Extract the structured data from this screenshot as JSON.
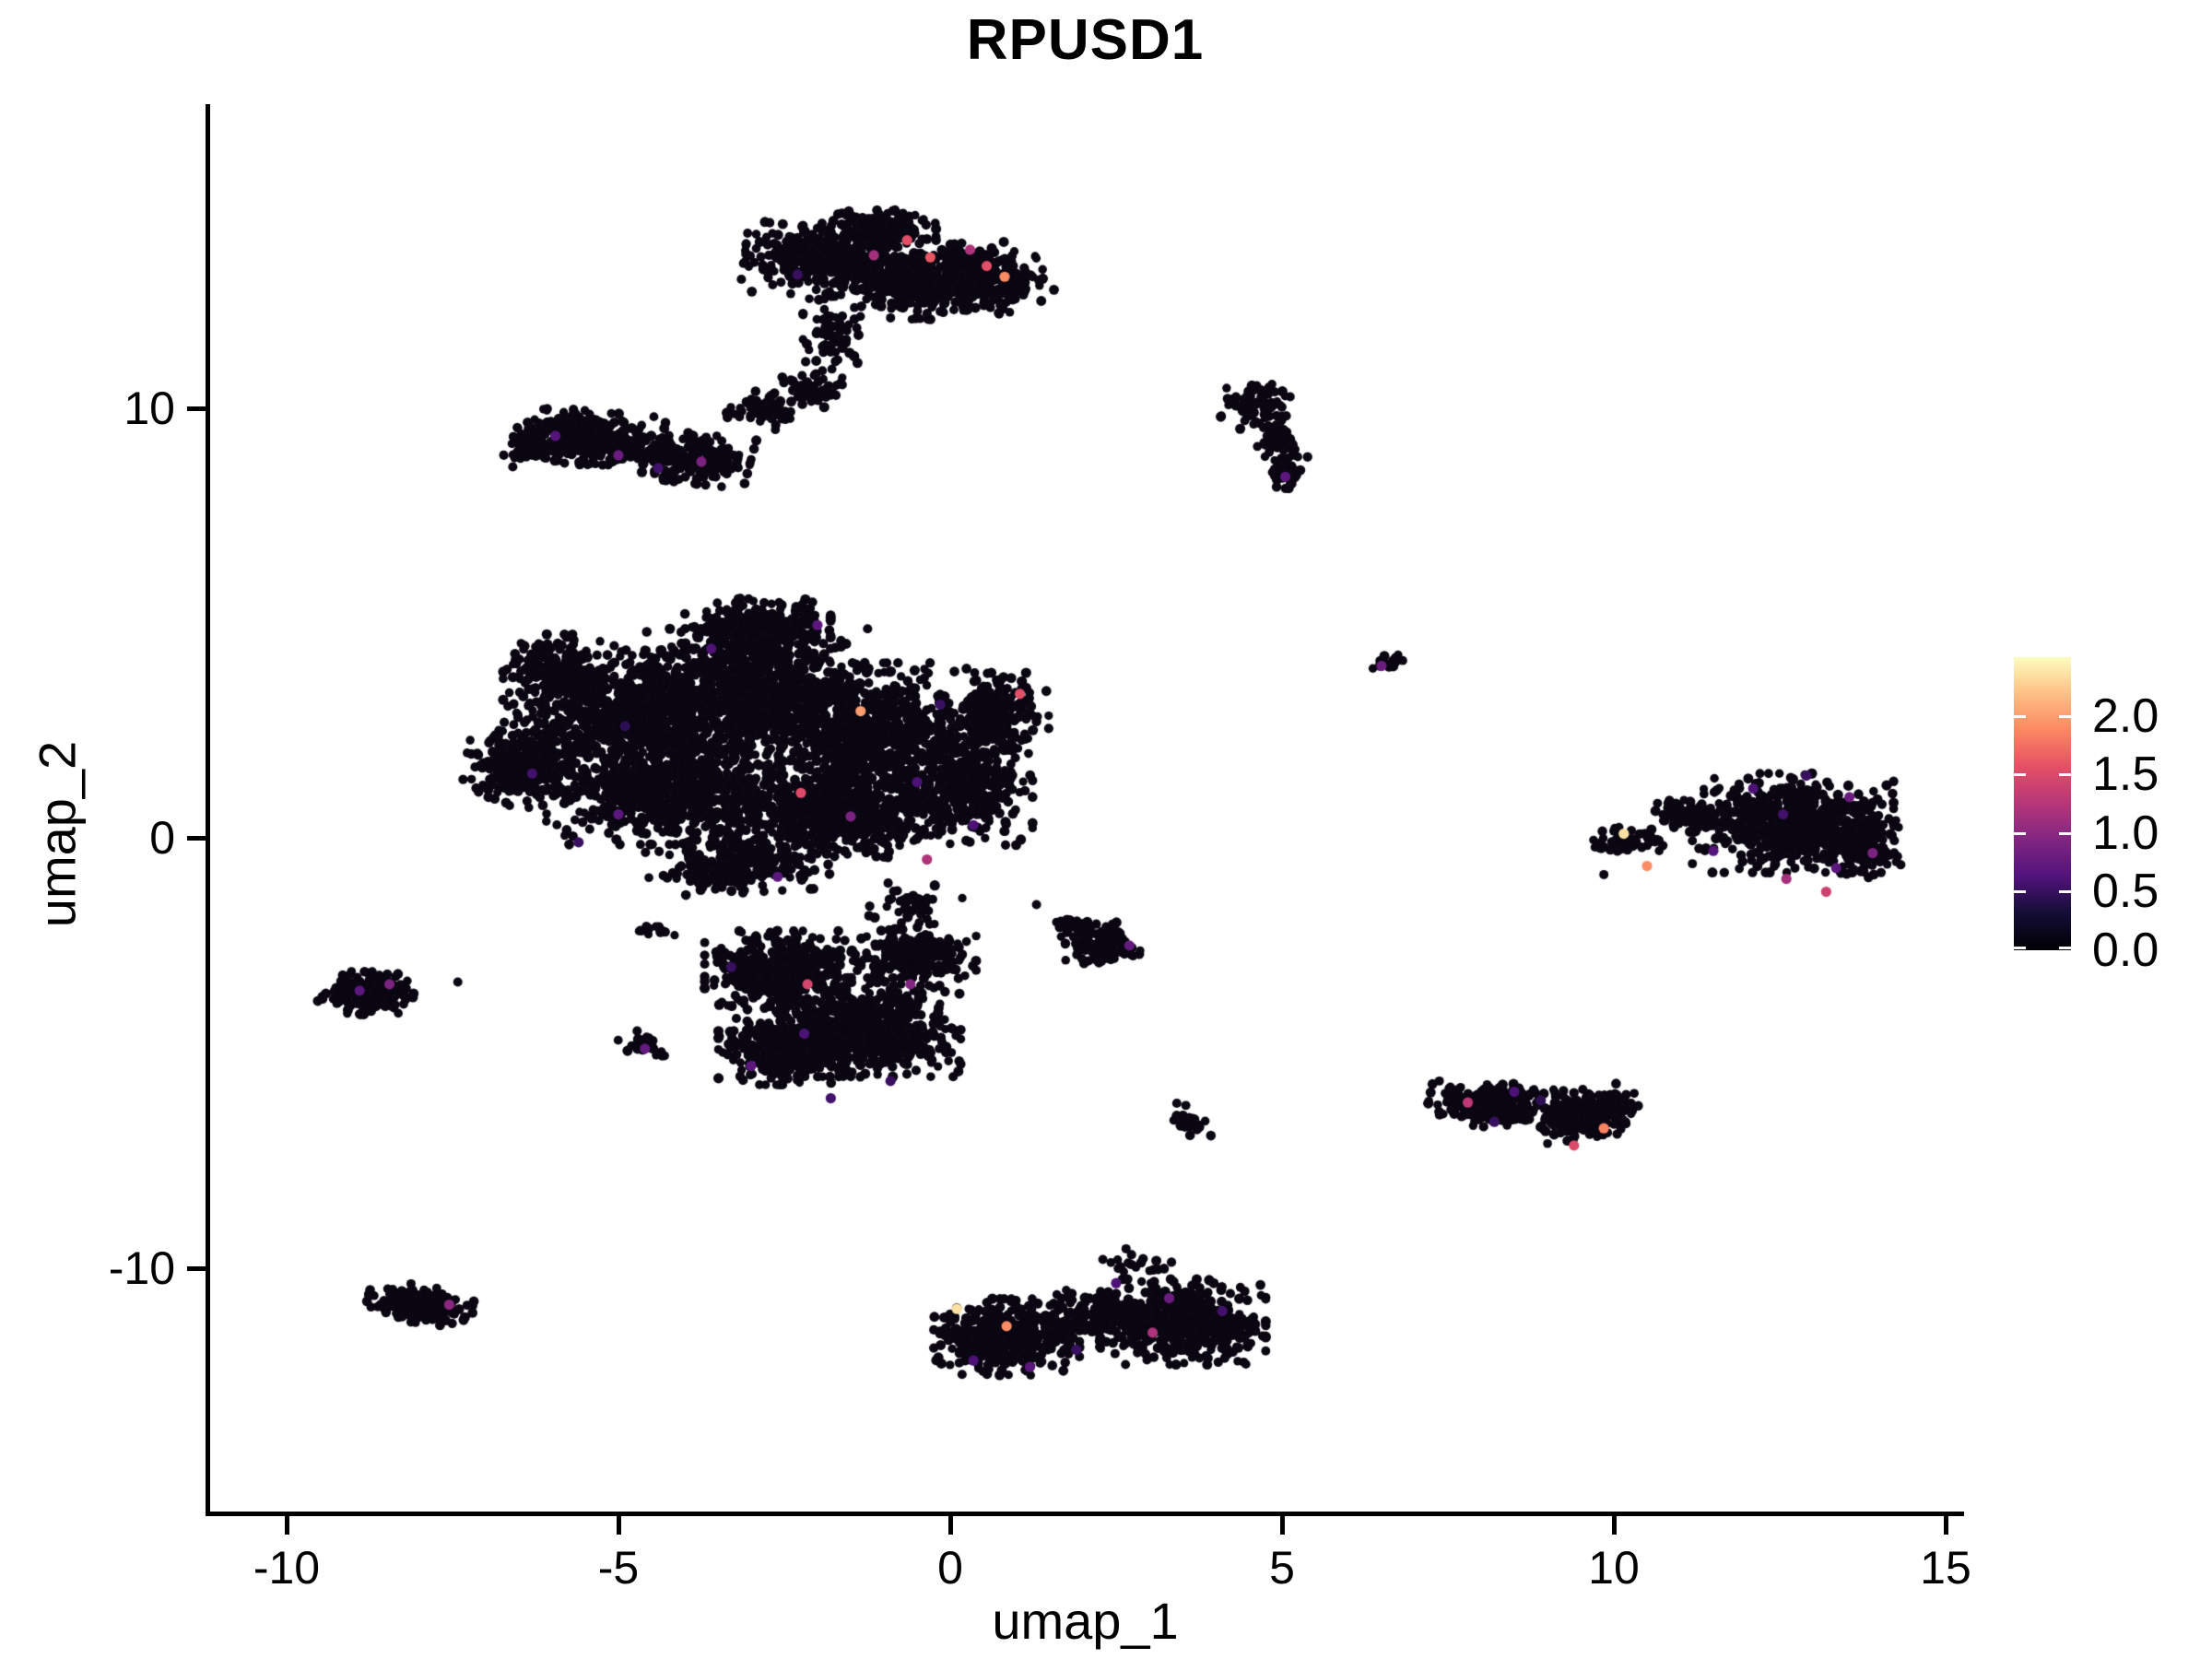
{
  "title": "RPUSD1",
  "chart_data": {
    "type": "scatter",
    "title": "RPUSD1",
    "xlabel": "umap_1",
    "ylabel": "umap_2",
    "background": "#FFFFFF",
    "grid": false,
    "xlim": [
      -11.18,
      15.25
    ],
    "ylim": [
      -15.66,
      17.02
    ],
    "x_ticks": [
      -10,
      -5,
      0,
      5,
      10,
      15
    ],
    "x_tick_labels": [
      "-10",
      "-5",
      "0",
      "5",
      "10",
      "15"
    ],
    "y_ticks": [
      -10,
      0,
      10
    ],
    "y_tick_labels": [
      "-10",
      "0",
      "10"
    ],
    "point_color_zero": "#0A0612",
    "point_radius_px": 5,
    "legend": {
      "position": "right",
      "colormap": "magma",
      "max": 2.5,
      "ticks": [
        2.0,
        1.5,
        1.0,
        0.5,
        0.0
      ],
      "tick_labels": [
        "2.0",
        "1.5",
        "1.0",
        "0.5",
        "0.0"
      ],
      "stops": [
        [
          0.0,
          "#000004"
        ],
        [
          0.13,
          "#140E36"
        ],
        [
          0.25,
          "#51127C"
        ],
        [
          0.38,
          "#822681"
        ],
        [
          0.5,
          "#B63679"
        ],
        [
          0.63,
          "#E65164"
        ],
        [
          0.75,
          "#FB8861"
        ],
        [
          0.88,
          "#FEC287"
        ],
        [
          1.0,
          "#FCFDBF"
        ]
      ]
    },
    "clusters": [
      {
        "name": "top-a",
        "cx": -1.9,
        "cy": 13.45,
        "rx": 1.15,
        "ry": 0.8,
        "rot": -5,
        "n": 480
      },
      {
        "name": "top-b",
        "cx": -0.45,
        "cy": 13.0,
        "rx": 0.95,
        "ry": 0.9,
        "rot": 0,
        "n": 380
      },
      {
        "name": "top-c",
        "cx": 0.6,
        "cy": 12.95,
        "rx": 0.8,
        "ry": 0.75,
        "rot": 20,
        "n": 260
      },
      {
        "name": "top-d",
        "cx": -1.05,
        "cy": 14.2,
        "rx": 0.8,
        "ry": 0.45,
        "rot": 0,
        "n": 160
      },
      {
        "name": "top-tail-a",
        "cx": -1.8,
        "cy": 11.7,
        "rx": 0.4,
        "ry": 0.8,
        "rot": 0,
        "n": 70
      },
      {
        "name": "top-tail-b",
        "cx": -2.15,
        "cy": 10.5,
        "rx": 0.5,
        "ry": 0.55,
        "rot": 0,
        "n": 55
      },
      {
        "name": "top-tail-c",
        "cx": -2.8,
        "cy": 9.95,
        "rx": 0.55,
        "ry": 0.4,
        "rot": -20,
        "n": 55
      },
      {
        "name": "nw-a",
        "cx": -5.45,
        "cy": 9.3,
        "rx": 1.05,
        "ry": 0.6,
        "rot": -8,
        "n": 300
      },
      {
        "name": "nw-b",
        "cx": -4.0,
        "cy": 8.85,
        "rx": 0.95,
        "ry": 0.55,
        "rot": -10,
        "n": 240
      },
      {
        "name": "nw-c",
        "cx": -6.3,
        "cy": 9.1,
        "rx": 0.5,
        "ry": 0.45,
        "rot": 0,
        "n": 90
      },
      {
        "name": "comma-a",
        "cx": 4.6,
        "cy": 10.05,
        "rx": 0.5,
        "ry": 0.55,
        "rot": 0,
        "n": 70
      },
      {
        "name": "comma-b",
        "cx": 4.95,
        "cy": 9.25,
        "rx": 0.33,
        "ry": 0.6,
        "rot": 12,
        "n": 65
      },
      {
        "name": "comma-c",
        "cx": 5.05,
        "cy": 8.55,
        "rx": 0.28,
        "ry": 0.4,
        "rot": 0,
        "n": 35
      },
      {
        "name": "cen-a",
        "cx": -4.8,
        "cy": 2.8,
        "rx": 1.7,
        "ry": 1.5,
        "rot": 0,
        "n": 850
      },
      {
        "name": "cen-b",
        "cx": -2.9,
        "cy": 3.4,
        "rx": 1.6,
        "ry": 1.4,
        "rot": 0,
        "n": 850
      },
      {
        "name": "cen-c",
        "cx": -1.2,
        "cy": 2.4,
        "rx": 1.5,
        "ry": 1.6,
        "rot": 0,
        "n": 750
      },
      {
        "name": "cen-d",
        "cx": -4.1,
        "cy": 1.0,
        "rx": 1.9,
        "ry": 1.1,
        "rot": 0,
        "n": 750
      },
      {
        "name": "cen-e",
        "cx": -1.7,
        "cy": 0.6,
        "rx": 1.8,
        "ry": 1.0,
        "rot": 0,
        "n": 650
      },
      {
        "name": "cen-f",
        "cx": -6.4,
        "cy": 1.7,
        "rx": 0.9,
        "ry": 0.95,
        "rot": 0,
        "n": 260
      },
      {
        "name": "cen-g",
        "cx": 0.3,
        "cy": 1.3,
        "rx": 0.9,
        "ry": 1.4,
        "rot": 0,
        "n": 330
      },
      {
        "name": "cen-h",
        "cx": -3.2,
        "cy": -0.65,
        "rx": 1.3,
        "ry": 0.6,
        "rot": 5,
        "n": 260
      },
      {
        "name": "cen-i",
        "cx": 0.7,
        "cy": 2.9,
        "rx": 0.75,
        "ry": 0.9,
        "rot": 0,
        "n": 240
      },
      {
        "name": "cen-j",
        "cx": -2.9,
        "cy": 4.9,
        "rx": 1.05,
        "ry": 0.65,
        "rot": 0,
        "n": 300
      },
      {
        "name": "cen-k",
        "cx": -5.9,
        "cy": 3.9,
        "rx": 0.8,
        "ry": 0.8,
        "rot": 0,
        "n": 200
      },
      {
        "name": "cen-gap",
        "cx": -0.55,
        "cy": -1.55,
        "rx": 0.7,
        "ry": 0.55,
        "rot": 0,
        "n": 45
      },
      {
        "name": "low-a",
        "cx": -2.55,
        "cy": -3.1,
        "rx": 1.1,
        "ry": 0.9,
        "rot": 0,
        "n": 430
      },
      {
        "name": "low-b",
        "cx": -1.2,
        "cy": -4.4,
        "rx": 1.3,
        "ry": 1.1,
        "rot": 0,
        "n": 650
      },
      {
        "name": "low-c",
        "cx": -2.5,
        "cy": -4.9,
        "rx": 0.95,
        "ry": 0.8,
        "rot": 0,
        "n": 330
      },
      {
        "name": "low-d",
        "cx": -0.55,
        "cy": -2.7,
        "rx": 0.9,
        "ry": 0.7,
        "rot": 0,
        "n": 240
      },
      {
        "name": "low-arm",
        "cx": -4.6,
        "cy": -4.85,
        "rx": 0.4,
        "ry": 0.22,
        "rot": -35,
        "n": 24
      },
      {
        "name": "low-spur",
        "cx": -4.4,
        "cy": -2.1,
        "rx": 0.3,
        "ry": 0.18,
        "rot": 0,
        "n": 14
      },
      {
        "name": "west",
        "cx": -8.8,
        "cy": -3.6,
        "rx": 0.68,
        "ry": 0.48,
        "rot": -5,
        "n": 160
      },
      {
        "name": "sw",
        "cx": -7.9,
        "cy": -10.85,
        "rx": 0.85,
        "ry": 0.42,
        "rot": -10,
        "n": 170
      },
      {
        "name": "mid-small",
        "cx": 2.3,
        "cy": -2.45,
        "rx": 0.62,
        "ry": 0.5,
        "rot": -15,
        "n": 140
      },
      {
        "name": "mid-small-arm",
        "cx": 1.8,
        "cy": -2.0,
        "rx": 0.3,
        "ry": 0.22,
        "rot": -30,
        "n": 25
      },
      {
        "name": "streak",
        "cx": 3.62,
        "cy": -6.6,
        "rx": 0.2,
        "ry": 0.5,
        "rot": 25,
        "n": 26
      },
      {
        "name": "dot-ne",
        "cx": 6.62,
        "cy": 4.05,
        "rx": 0.24,
        "ry": 0.2,
        "rot": 0,
        "n": 20
      },
      {
        "name": "mr-a",
        "cx": 8.15,
        "cy": -6.2,
        "rx": 0.9,
        "ry": 0.5,
        "rot": -8,
        "n": 230
      },
      {
        "name": "mr-b",
        "cx": 9.55,
        "cy": -6.4,
        "rx": 0.8,
        "ry": 0.55,
        "rot": 12,
        "n": 210
      },
      {
        "name": "r-tail",
        "cx": 10.2,
        "cy": -0.05,
        "rx": 0.55,
        "ry": 0.3,
        "rot": 8,
        "n": 55
      },
      {
        "name": "r-bridge",
        "cx": 11.15,
        "cy": 0.5,
        "rx": 0.55,
        "ry": 0.4,
        "rot": -25,
        "n": 85
      },
      {
        "name": "r-main",
        "cx": 12.7,
        "cy": 0.35,
        "rx": 1.45,
        "ry": 1.1,
        "rot": 0,
        "n": 580
      },
      {
        "name": "r-edge",
        "cx": 13.8,
        "cy": -0.15,
        "rx": 0.5,
        "ry": 0.85,
        "rot": 0,
        "n": 150
      },
      {
        "name": "s-a",
        "cx": 0.85,
        "cy": -11.6,
        "rx": 1.05,
        "ry": 0.85,
        "rot": 0,
        "n": 430
      },
      {
        "name": "s-b",
        "cx": 3.5,
        "cy": -11.25,
        "rx": 1.2,
        "ry": 0.95,
        "rot": 0,
        "n": 560
      },
      {
        "name": "s-c",
        "cx": 2.2,
        "cy": -11.05,
        "rx": 0.8,
        "ry": 0.55,
        "rot": 0,
        "n": 170
      },
      {
        "name": "s-top",
        "cx": 2.9,
        "cy": -9.95,
        "rx": 0.5,
        "ry": 0.3,
        "rot": 0,
        "n": 18
      }
    ],
    "outliers": [
      {
        "x": -7.42,
        "y": -3.35
      },
      {
        "x": 2.65,
        "y": -9.55
      },
      {
        "x": 2.3,
        "y": -9.8
      },
      {
        "x": 1.3,
        "y": -1.55
      },
      {
        "x": 9.85,
        "y": -0.85
      }
    ],
    "highlight_points": [
      {
        "x": -0.65,
        "y": 13.9,
        "v": 1.55
      },
      {
        "x": -0.3,
        "y": 13.5,
        "v": 1.6
      },
      {
        "x": 0.55,
        "y": 13.3,
        "v": 1.55
      },
      {
        "x": 0.82,
        "y": 13.05,
        "v": 1.9
      },
      {
        "x": -1.15,
        "y": 13.55,
        "v": 1.15
      },
      {
        "x": 0.3,
        "y": 13.68,
        "v": 1.2
      },
      {
        "x": -2.3,
        "y": 13.1,
        "v": 0.5
      },
      {
        "x": -5.95,
        "y": 9.35,
        "v": 0.65
      },
      {
        "x": -5.0,
        "y": 8.9,
        "v": 0.8
      },
      {
        "x": -4.4,
        "y": 8.6,
        "v": 0.55
      },
      {
        "x": -3.75,
        "y": 8.75,
        "v": 0.9
      },
      {
        "x": 5.05,
        "y": 8.4,
        "v": 0.7
      },
      {
        "x": 6.5,
        "y": 4.0,
        "v": 0.8
      },
      {
        "x": -1.35,
        "y": 2.95,
        "v": 2.0
      },
      {
        "x": 1.05,
        "y": 3.35,
        "v": 1.55
      },
      {
        "x": -2.25,
        "y": 1.05,
        "v": 1.5
      },
      {
        "x": -0.35,
        "y": -0.5,
        "v": 1.2
      },
      {
        "x": -6.3,
        "y": 1.5,
        "v": 0.55
      },
      {
        "x": -5.0,
        "y": 0.55,
        "v": 0.7
      },
      {
        "x": -1.5,
        "y": 0.5,
        "v": 0.9
      },
      {
        "x": -0.5,
        "y": 1.3,
        "v": 0.6
      },
      {
        "x": -2.6,
        "y": -0.9,
        "v": 0.7
      },
      {
        "x": -3.6,
        "y": 4.4,
        "v": 0.6
      },
      {
        "x": -2.0,
        "y": 4.95,
        "v": 0.7
      },
      {
        "x": -0.15,
        "y": 3.1,
        "v": 0.5
      },
      {
        "x": -4.9,
        "y": 2.6,
        "v": 0.45
      },
      {
        "x": -5.6,
        "y": -0.1,
        "v": 0.5
      },
      {
        "x": 0.35,
        "y": 0.3,
        "v": 0.6
      },
      {
        "x": -8.9,
        "y": -3.55,
        "v": 0.7
      },
      {
        "x": -8.45,
        "y": -3.4,
        "v": 0.9
      },
      {
        "x": -7.55,
        "y": -10.85,
        "v": 1.0
      },
      {
        "x": -4.6,
        "y": -4.9,
        "v": 0.75
      },
      {
        "x": -3.0,
        "y": -5.3,
        "v": 0.7
      },
      {
        "x": -1.8,
        "y": -6.05,
        "v": 0.55
      },
      {
        "x": -0.6,
        "y": -3.4,
        "v": 0.95
      },
      {
        "x": -2.2,
        "y": -4.55,
        "v": 0.6
      },
      {
        "x": -0.9,
        "y": -5.65,
        "v": 0.5
      },
      {
        "x": -2.15,
        "y": -3.4,
        "v": 1.45
      },
      {
        "x": -3.3,
        "y": -3.0,
        "v": 0.5
      },
      {
        "x": 2.7,
        "y": -2.5,
        "v": 0.75
      },
      {
        "x": 0.1,
        "y": -10.95,
        "v": 2.35
      },
      {
        "x": 0.85,
        "y": -11.35,
        "v": 1.9
      },
      {
        "x": 3.05,
        "y": -11.5,
        "v": 1.2
      },
      {
        "x": 1.2,
        "y": -12.3,
        "v": 0.7
      },
      {
        "x": 2.5,
        "y": -10.35,
        "v": 0.6
      },
      {
        "x": 3.3,
        "y": -10.7,
        "v": 0.8
      },
      {
        "x": 1.9,
        "y": -11.9,
        "v": 0.5
      },
      {
        "x": 4.1,
        "y": -11.0,
        "v": 0.55
      },
      {
        "x": 0.35,
        "y": -12.15,
        "v": 0.6
      },
      {
        "x": 7.8,
        "y": -6.15,
        "v": 1.3
      },
      {
        "x": 9.85,
        "y": -6.75,
        "v": 1.85
      },
      {
        "x": 9.4,
        "y": -7.15,
        "v": 1.5
      },
      {
        "x": 8.5,
        "y": -5.9,
        "v": 0.6
      },
      {
        "x": 8.2,
        "y": -6.6,
        "v": 0.5
      },
      {
        "x": 10.15,
        "y": 0.1,
        "v": 2.35
      },
      {
        "x": 10.5,
        "y": -0.65,
        "v": 1.9
      },
      {
        "x": 12.1,
        "y": 1.15,
        "v": 0.6
      },
      {
        "x": 12.55,
        "y": 0.55,
        "v": 0.55
      },
      {
        "x": 13.9,
        "y": -0.35,
        "v": 0.9
      },
      {
        "x": 12.6,
        "y": -0.95,
        "v": 1.15
      },
      {
        "x": 13.2,
        "y": -1.25,
        "v": 1.4
      },
      {
        "x": 11.5,
        "y": -0.3,
        "v": 0.65
      },
      {
        "x": 13.55,
        "y": 0.95,
        "v": 0.8
      },
      {
        "x": 12.9,
        "y": 1.45,
        "v": 0.5
      },
      {
        "x": 13.35,
        "y": -0.7,
        "v": 0.7
      },
      {
        "x": 8.9,
        "y": -6.1,
        "v": 0.45
      }
    ]
  }
}
